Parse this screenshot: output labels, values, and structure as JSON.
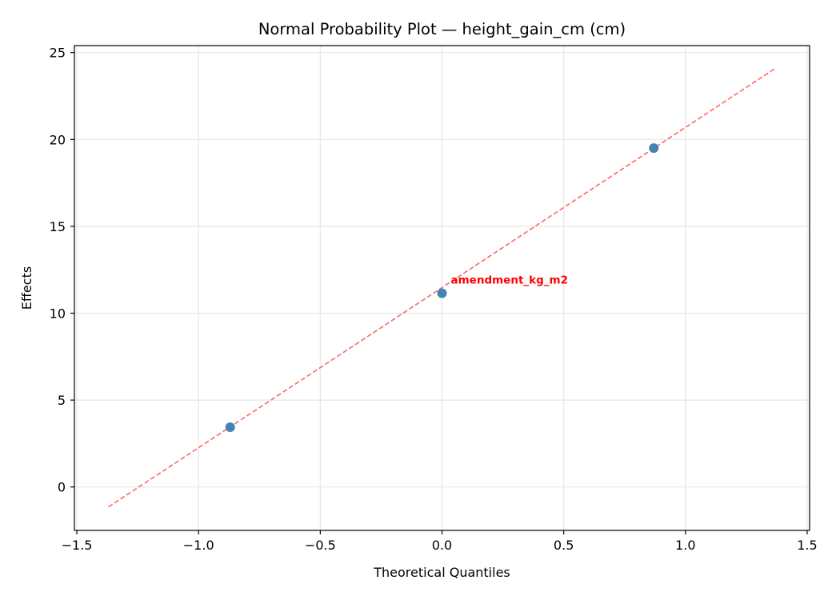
{
  "chart_data": {
    "type": "scatter",
    "title": "Normal Probability Plot — height_gain_cm (cm)",
    "xlabel": "Theoretical Quantiles",
    "ylabel": "Effects",
    "xlim": [
      -1.51,
      1.51
    ],
    "ylim": [
      -2.5,
      25.4
    ],
    "xticks": [
      -1.5,
      -1.0,
      -0.5,
      0.0,
      0.5,
      1.0,
      1.5
    ],
    "xtick_labels": [
      "−1.5",
      "−1.0",
      "−0.5",
      "0.0",
      "0.5",
      "1.0",
      "1.5"
    ],
    "yticks": [
      0,
      5,
      10,
      15,
      20,
      25
    ],
    "ytick_labels": [
      "0",
      "5",
      "10",
      "15",
      "20",
      "25"
    ],
    "grid": true,
    "series": [
      {
        "name": "effects",
        "kind": "scatter",
        "color": "#4682b4",
        "points": [
          {
            "x": -0.87,
            "y": 3.44
          },
          {
            "x": 0.0,
            "y": 11.15
          },
          {
            "x": 0.87,
            "y": 19.5
          }
        ]
      },
      {
        "name": "reference-line",
        "kind": "line",
        "style": "dashed",
        "color": "#ff6666",
        "points": [
          {
            "x": -1.37,
            "y": -1.15
          },
          {
            "x": 1.37,
            "y": 24.1
          }
        ]
      }
    ],
    "annotations": [
      {
        "text": "amendment_kg_m2",
        "x": 0.0,
        "y": 11.15,
        "color": "#ff0000"
      }
    ]
  }
}
